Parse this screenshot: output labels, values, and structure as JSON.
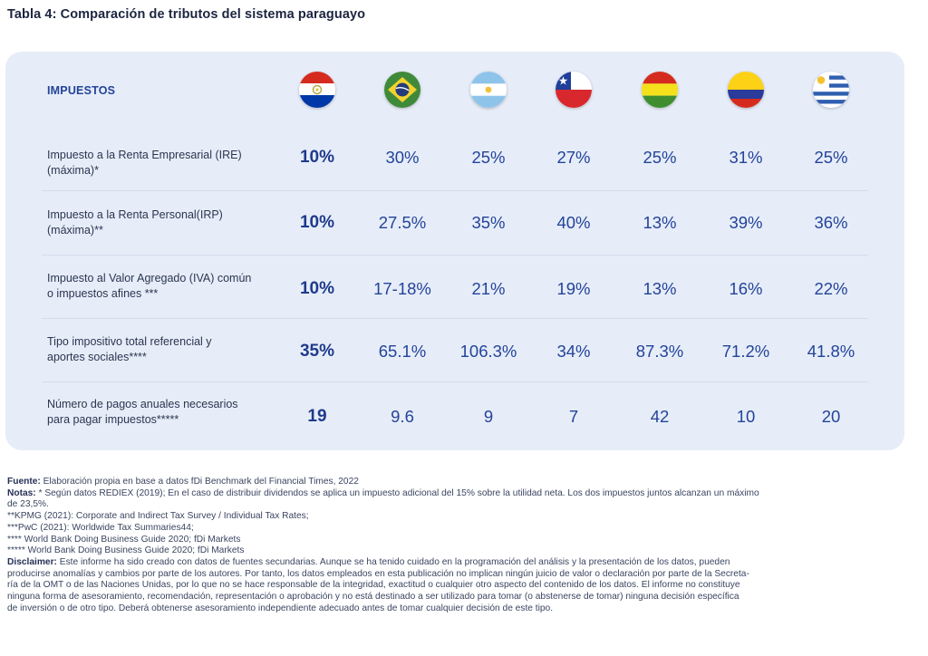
{
  "title": "Tabla 4: Comparación de tributos del sistema paraguayo",
  "header": {
    "label": "IMPUESTOS",
    "countries": [
      {
        "icon": "paraguay-flag-icon"
      },
      {
        "icon": "brazil-flag-icon"
      },
      {
        "icon": "argentina-flag-icon"
      },
      {
        "icon": "chile-flag-icon"
      },
      {
        "icon": "bolivia-flag-icon"
      },
      {
        "icon": "colombia-flag-icon"
      },
      {
        "icon": "uruguay-flag-icon"
      }
    ]
  },
  "rows": [
    {
      "label_lines": [
        "Impuesto a la Renta Empresarial (IRE)",
        "(máxima)*"
      ],
      "values": [
        "10%",
        "30%",
        "25%",
        "27%",
        "25%",
        "31%",
        "25%"
      ]
    },
    {
      "label_lines": [
        "Impuesto a la Renta Personal(IRP)",
        "(máxima)**"
      ],
      "values": [
        "10%",
        "27.5%",
        "35%",
        "40%",
        "13%",
        "39%",
        "36%"
      ]
    },
    {
      "label_lines": [
        "Impuesto al Valor Agregado (IVA) común",
        "o impuestos afines ***"
      ],
      "values": [
        "10%",
        "17-18%",
        "21%",
        "19%",
        "13%",
        "16%",
        "22%"
      ]
    },
    {
      "label_lines": [
        "Tipo impositivo total referencial y",
        "aportes sociales****"
      ],
      "values": [
        "35%",
        "65.1%",
        "106.3%",
        "34%",
        "87.3%",
        "71.2%",
        "41.8%"
      ]
    },
    {
      "label_lines": [
        "Número de pagos anuales necesarios",
        "para pagar impuestos*****"
      ],
      "values": [
        "19",
        "9.6",
        "9",
        "7",
        "42",
        "10",
        "20"
      ]
    }
  ],
  "footer": {
    "fuente_label": "Fuente:",
    "fuente_text": " Elaboración propia en base a datos fDi Benchmark del Financial Times, 2022",
    "notas_label": "Notas:",
    "notas_line1": " * Según datos REDIEX (2019); En el caso de distribuir dividendos se aplica un impuesto adicional del 15% sobre la utilidad neta. Los dos impuestos juntos alcanzan un máximo",
    "notas_line2": "de 23,5%.",
    "note2": "**KPMG (2021): Corporate and Indirect Tax Survey / Individual Tax Rates;",
    "note3": "***PwC (2021): Worldwide Tax Summaries44;",
    "note4": "**** World Bank Doing Business Guide 2020; fDi Markets",
    "note5": "***** World Bank Doing Business Guide 2020; fDi Markets",
    "disclaimer_label": "Disclaimer:",
    "disclaimer_lines": [
      " Este informe ha sido creado con datos de fuentes secundarias.  Aunque se ha tenido cuidado en la programación del análisis y la presentación de los datos, pueden",
      "producirse anomalías y cambios por parte de los autores. Por tanto, los datos empleados en esta publicación no implican ningún juicio de valor o declaración por parte de la Secreta-",
      "ría de la OMT o de las Naciones Unidas, por lo que no se hace responsable de la integridad, exactitud o cualquier otro aspecto del contenido de los datos. El informe no constituye",
      "ninguna forma de asesoramiento, recomendación, representación o aprobación y no está destinado a ser utilizado para tomar (o abstenerse de tomar) ninguna decisión específica",
      "de inversión o de otro tipo. Deberá obtenerse asesoramiento independiente adecuado antes de tomar cualquier decisión de este tipo."
    ]
  }
}
